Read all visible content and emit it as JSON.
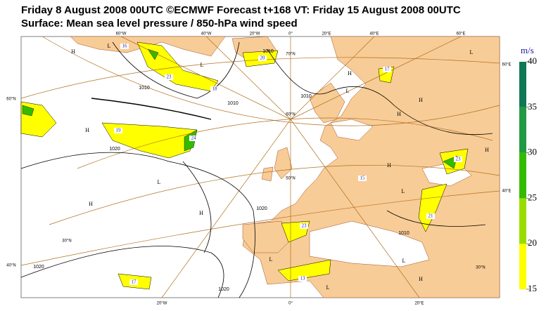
{
  "header": {
    "line1": "Friday 8 August 2008 00UTC ©ECMWF Forecast t+168 VT: Friday 15 August 2008 00UTC",
    "line2": "Surface: Mean sea level pressure / 850-hPa wind speed"
  },
  "colorbar": {
    "unit": "m/s",
    "ticks": [
      15,
      20,
      25,
      30,
      35,
      40
    ],
    "colors": [
      "#ffff00",
      "#99dd00",
      "#33bb00",
      "#229944",
      "#117755"
    ]
  },
  "map": {
    "grid_labels": [
      "60°W",
      "40°W",
      "20°W",
      "0°",
      "20°E",
      "40°E",
      "60°E",
      "20°W",
      "0°",
      "20°E",
      "60°N",
      "40°N",
      "60°E",
      "40°E",
      "70°N",
      "60°N",
      "50°N",
      "30°N",
      "30°N"
    ],
    "pressure_centers": [
      "H",
      "L",
      "L",
      "H",
      "L",
      "H",
      "H",
      "H",
      "L",
      "H",
      "H",
      "H",
      "L",
      "H",
      "L",
      "L",
      "L",
      "L",
      "H"
    ],
    "isobar_labels": [
      "1010",
      "1020",
      "1010",
      "1010",
      "1020",
      "1020",
      "1020",
      "1010",
      "1010"
    ],
    "wind_labels": [
      "16",
      "23",
      "18",
      "20",
      "19",
      "24",
      "17",
      "23",
      "15",
      "23",
      "21",
      "17",
      "13"
    ]
  }
}
